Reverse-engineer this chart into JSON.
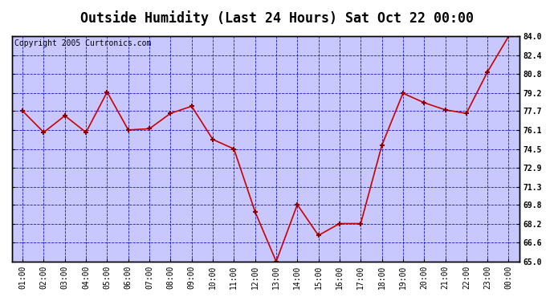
{
  "title": "Outside Humidity (Last 24 Hours) Sat Oct 22 00:00",
  "copyright": "Copyright 2005 Curtronics.com",
  "x_labels": [
    "01:00",
    "02:00",
    "03:00",
    "04:00",
    "05:00",
    "06:00",
    "07:00",
    "08:00",
    "09:00",
    "10:00",
    "11:00",
    "12:00",
    "13:00",
    "14:00",
    "15:00",
    "16:00",
    "17:00",
    "18:00",
    "19:00",
    "20:00",
    "21:00",
    "22:00",
    "23:00",
    "00:00"
  ],
  "y_values": [
    77.7,
    75.9,
    77.3,
    75.9,
    79.3,
    76.1,
    76.2,
    77.5,
    78.1,
    75.3,
    74.5,
    69.2,
    65.0,
    69.8,
    67.2,
    68.2,
    68.2,
    74.8,
    79.2,
    78.4,
    77.8,
    77.5,
    81.0,
    84.0
  ],
  "line_color": "#cc0000",
  "marker_color": "#880000",
  "fig_bg_color": "#ffffff",
  "plot_bg_color": "#c8c8ff",
  "grid_color": "#0000bb",
  "title_fontsize": 12,
  "copyright_fontsize": 7,
  "tick_label_fontsize": 7,
  "ylim": [
    65.0,
    84.0
  ],
  "yticks": [
    65.0,
    66.6,
    68.2,
    69.8,
    71.3,
    72.9,
    74.5,
    76.1,
    77.7,
    79.2,
    80.8,
    82.4,
    84.0
  ]
}
